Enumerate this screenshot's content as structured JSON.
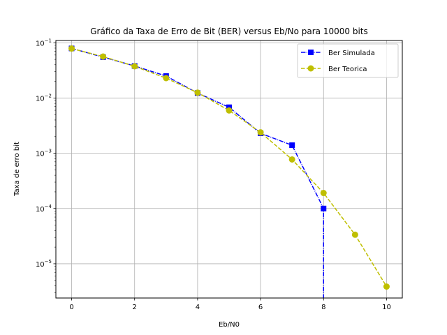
{
  "chart_data": {
    "type": "line",
    "title": "Gráfico da Taxa de Erro de Bit (BER) versus Eb/No para 10000 bits",
    "xlabel": "Eb/N0",
    "ylabel": "Taxa de erro bit",
    "xlim": [
      -0.5,
      10.5
    ],
    "ylim": [
      2.4e-06,
      0.11
    ],
    "yscale": "log",
    "grid": true,
    "legend_position": "top-right",
    "x_ticks": [
      0,
      2,
      4,
      6,
      8,
      10
    ],
    "x_tick_labels": [
      "0",
      "2",
      "4",
      "6",
      "8",
      "10"
    ],
    "y_ticks": [
      {
        "value": 0.1,
        "base": "10",
        "exp": "−1"
      },
      {
        "value": 0.01,
        "base": "10",
        "exp": "−2"
      },
      {
        "value": 0.001,
        "base": "10",
        "exp": "−3"
      },
      {
        "value": 0.0001,
        "base": "10",
        "exp": "−4"
      },
      {
        "value": 1e-05,
        "base": "10",
        "exp": "−5"
      }
    ],
    "series": [
      {
        "name": "Ber Simulada",
        "color": "#0000ff",
        "marker": "square",
        "line_style": "dashdot",
        "x": [
          0,
          1,
          2,
          3,
          4,
          5,
          6,
          7,
          8
        ],
        "y": [
          0.079,
          0.055,
          0.038,
          0.025,
          0.0123,
          0.0068,
          0.0023,
          0.0014,
          0.0001
        ],
        "drops_to_zero_at_x": 8
      },
      {
        "name": "Ber Teorica",
        "color": "#bfbf00",
        "marker": "circle",
        "line_style": "dashed",
        "x": [
          0,
          1,
          2,
          3,
          4,
          5,
          6,
          7,
          8,
          9,
          10
        ],
        "y": [
          0.0786,
          0.0563,
          0.0375,
          0.0229,
          0.0125,
          0.00595,
          0.00239,
          0.000773,
          0.000191,
          3.36e-05,
          3.87e-06
        ]
      }
    ]
  }
}
